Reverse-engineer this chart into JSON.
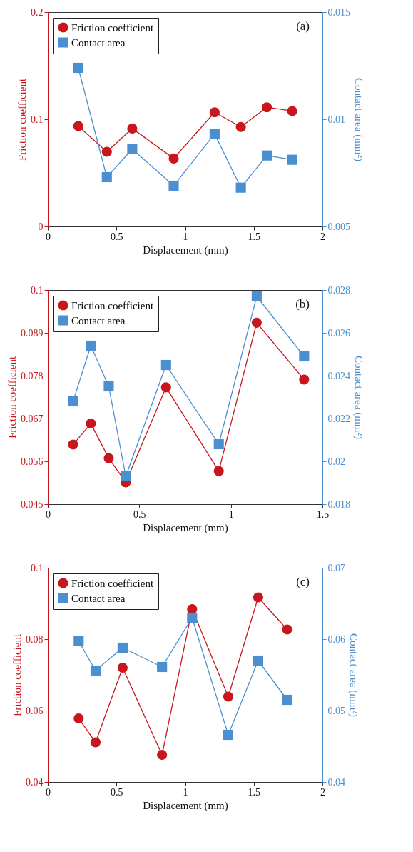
{
  "chart_data": [
    {
      "type": "line",
      "xlabel": "Displacement (mm)",
      "ylabel": "Friction coefficient",
      "y2label": "Contact area (mm²)",
      "annotations": [
        "(a)"
      ],
      "x": [
        0.222,
        0.43,
        0.615,
        0.917,
        1.215,
        1.406,
        1.595,
        1.78
      ],
      "series": [
        {
          "name": "Friction coefficient",
          "color": "#c8161d",
          "marker": "circle",
          "values": [
            0.0937,
            0.0697,
            0.0914,
            0.0634,
            0.1065,
            0.0928,
            0.1112,
            0.1077
          ]
        },
        {
          "name": "Contact area",
          "color": "#4a90d0",
          "marker": "square",
          "axis": "y2",
          "values": [
            0.0124,
            0.0073,
            0.00861,
            0.0069,
            0.00932,
            0.00681,
            0.00831,
            0.00811
          ]
        }
      ],
      "xlim": [
        0,
        2
      ],
      "xticks": [
        0,
        0.5,
        1,
        1.5,
        2
      ],
      "ylim": [
        0,
        0.2
      ],
      "yticks": [
        0,
        0.1,
        0.2
      ],
      "y2lim": [
        0.005,
        0.015
      ],
      "y2ticks": [
        0.005,
        0.01,
        0.015
      ],
      "legend": "top left",
      "grid": false
    },
    {
      "type": "line",
      "xlabel": "Displacement (mm)",
      "ylabel": "Friction coefficient",
      "y2label": "Contact area (mm²)",
      "annotations": [
        "(b)"
      ],
      "x": [
        0.138,
        0.235,
        0.333,
        0.426,
        0.646,
        0.934,
        1.141,
        1.4
      ],
      "series": [
        {
          "name": "Friction coefficient",
          "color": "#c8161d",
          "marker": "circle",
          "values": [
            0.0603,
            0.0657,
            0.0568,
            0.0506,
            0.075,
            0.0535,
            0.0916,
            0.077
          ]
        },
        {
          "name": "Contact area",
          "color": "#4a90d0",
          "marker": "square",
          "axis": "y2",
          "values": [
            0.0228,
            0.0254,
            0.0235,
            0.0193,
            0.0245,
            0.0208,
            0.0277,
            0.0249
          ]
        }
      ],
      "xlim": [
        0,
        1.5
      ],
      "xticks": [
        0,
        0.5,
        1,
        1.5
      ],
      "ylim": [
        0.045,
        0.1
      ],
      "yticks": [
        0.045,
        0.056,
        0.067,
        0.078,
        0.089,
        0.1
      ],
      "y2lim": [
        0.018,
        0.028
      ],
      "y2ticks": [
        0.018,
        0.02,
        0.022,
        0.024,
        0.026,
        0.028
      ],
      "legend": "top left",
      "grid": false
    },
    {
      "type": "line",
      "xlabel": "Displacement (mm)",
      "ylabel": "Friction coefficient",
      "y2label": "Contact area (mm²)",
      "annotations": [
        "(c)"
      ],
      "x": [
        0.225,
        0.348,
        0.545,
        0.832,
        1.051,
        1.314,
        1.532,
        1.743
      ],
      "series": [
        {
          "name": "Friction coefficient",
          "color": "#c8161d",
          "marker": "circle",
          "values": [
            0.0578,
            0.0511,
            0.072,
            0.0476,
            0.0884,
            0.0639,
            0.0917,
            0.0827
          ]
        },
        {
          "name": "Contact area",
          "color": "#4a90d0",
          "marker": "square",
          "axis": "y2",
          "values": [
            0.0597,
            0.0556,
            0.0588,
            0.0561,
            0.063,
            0.0466,
            0.057,
            0.0515
          ]
        }
      ],
      "xlim": [
        0,
        2
      ],
      "xticks": [
        0,
        0.5,
        1,
        1.5,
        2
      ],
      "ylim": [
        0.04,
        0.1
      ],
      "yticks": [
        0.04,
        0.06,
        0.08,
        0.1
      ],
      "y2lim": [
        0.04,
        0.07
      ],
      "y2ticks": [
        0.04,
        0.05,
        0.06,
        0.07
      ],
      "legend": "top left",
      "grid": false
    }
  ]
}
